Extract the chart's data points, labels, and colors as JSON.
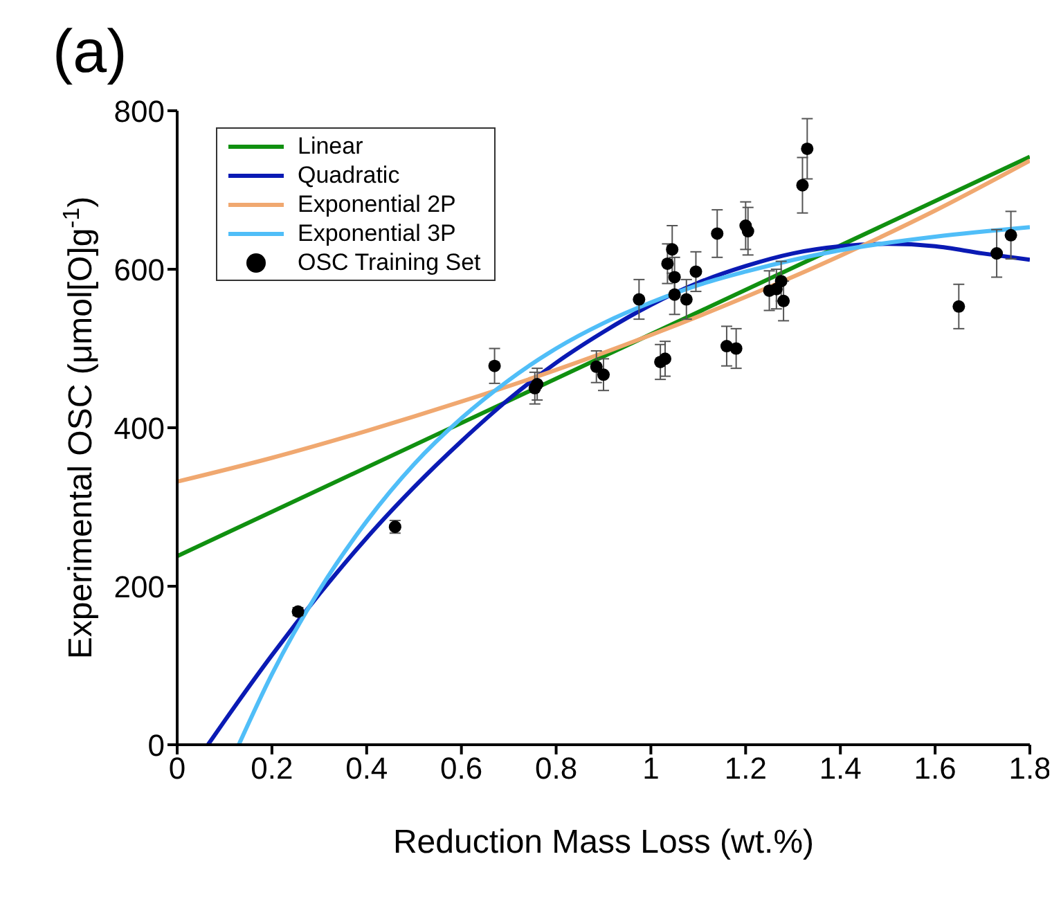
{
  "chart_data": {
    "type": "scatter",
    "title": "(a)",
    "xlabel": "Reduction Mass Loss (wt.%)",
    "ylabel": "Experimental OSC (μmol[O]g$^{-1}$)",
    "xlim": [
      0,
      1.8
    ],
    "xticks": [
      0,
      0.2,
      0.4,
      0.6,
      0.8,
      1,
      1.2,
      1.4,
      1.6,
      1.8
    ],
    "ylim": [
      0,
      800
    ],
    "yticks": [
      0,
      200,
      400,
      600,
      800
    ],
    "grid": false,
    "legend": "top left",
    "series": [
      {
        "name": "Linear",
        "type": "line",
        "color": "#109010",
        "marker": "none",
        "x": [
          0,
          1.8
        ],
        "values": [
          238,
          742
        ]
      },
      {
        "name": "Quadratic",
        "type": "line",
        "color": "#0a1ab4",
        "marker": "none",
        "x": [
          0.065,
          0.1,
          0.2,
          0.3,
          0.4,
          0.5,
          0.6,
          0.7,
          0.8,
          0.9,
          1,
          1.1,
          1.2,
          1.3,
          1.4,
          1.5,
          1.6,
          1.7,
          1.8
        ],
        "values": [
          0,
          30,
          113,
          190,
          261,
          325,
          383,
          436,
          482,
          521,
          555,
          583,
          604,
          620,
          629,
          632,
          629,
          620,
          612
        ]
      },
      {
        "name": "Exponential 2P",
        "type": "line",
        "color": "#f0a870",
        "marker": "none",
        "x": [
          0,
          0.2,
          0.4,
          0.6,
          0.8,
          1,
          1.2,
          1.4,
          1.6,
          1.8
        ],
        "values": [
          332,
          362,
          396,
          433,
          473,
          517,
          565,
          617,
          674,
          737
        ]
      },
      {
        "name": "Exponential 3P",
        "type": "line",
        "color": "#50bef8",
        "marker": "none",
        "x": [
          0.13,
          0.2,
          0.3,
          0.4,
          0.5,
          0.6,
          0.7,
          0.8,
          0.9,
          1,
          1.1,
          1.2,
          1.4,
          1.6,
          1.8
        ],
        "values": [
          0,
          89,
          195,
          282,
          354,
          412,
          460,
          500,
          532,
          558,
          580,
          597,
          624,
          641,
          653
        ]
      },
      {
        "name": "OSC Training Set",
        "color": "#000000",
        "marker": "circle",
        "x": [
          0.255,
          0.46,
          0.67,
          0.755,
          0.76,
          0.885,
          0.9,
          0.975,
          1.02,
          1.03,
          1.035,
          1.045,
          1.05,
          1.05,
          1.075,
          1.095,
          1.14,
          1.16,
          1.18,
          1.2,
          1.205,
          1.25,
          1.265,
          1.275,
          1.28,
          1.32,
          1.33,
          1.65,
          1.73,
          1.76
        ],
        "values": [
          168,
          275,
          478,
          450,
          455,
          477,
          467,
          562,
          483,
          487,
          607,
          625,
          590,
          568,
          562,
          597,
          645,
          503,
          500,
          655,
          648,
          573,
          575,
          585,
          560,
          706,
          752,
          553,
          620,
          643
        ],
        "errors": [
          5,
          8,
          22,
          20,
          20,
          20,
          20,
          25,
          22,
          22,
          25,
          30,
          25,
          25,
          25,
          25,
          30,
          25,
          25,
          30,
          30,
          25,
          25,
          25,
          25,
          35,
          38,
          28,
          30,
          30
        ]
      }
    ]
  }
}
